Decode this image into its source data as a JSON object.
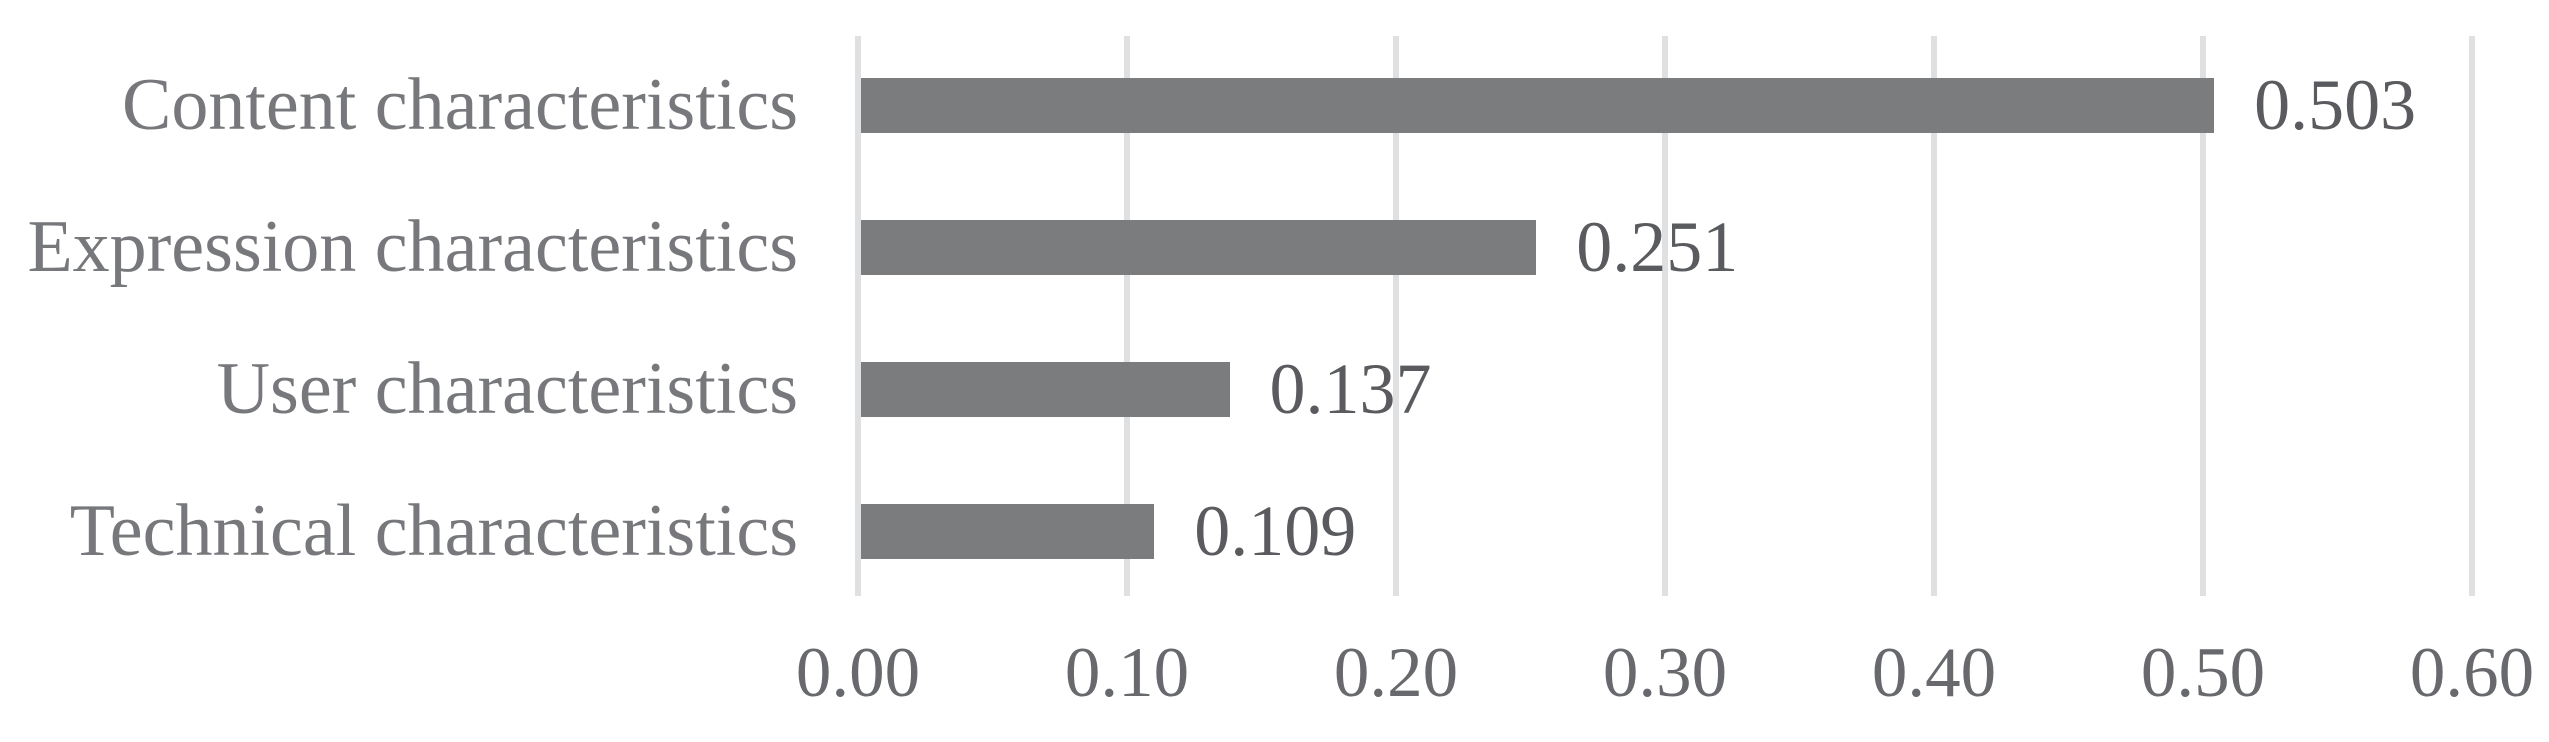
{
  "chart_data": {
    "type": "bar",
    "orientation": "horizontal",
    "categories": [
      "Content characteristics",
      "Expression characteristics",
      "User characteristics",
      "Technical characteristics"
    ],
    "values": [
      0.503,
      0.251,
      0.137,
      0.109
    ],
    "value_labels": [
      "0.503",
      "0.251",
      "0.137",
      "0.109"
    ],
    "x_ticks": [
      "0.00",
      "0.10",
      "0.20",
      "0.30",
      "0.40",
      "0.50",
      "0.60"
    ],
    "xlim": [
      0,
      0.6
    ],
    "grid": "vertical-gridlines",
    "legend": "none",
    "colors": {
      "bar": "#7b7c7e",
      "gridline": "#dfe0e2",
      "category_label": "#77787b",
      "value_label": "#5a5b5e",
      "axis_tick_label": "#67696c",
      "background": "#ffffff"
    }
  }
}
